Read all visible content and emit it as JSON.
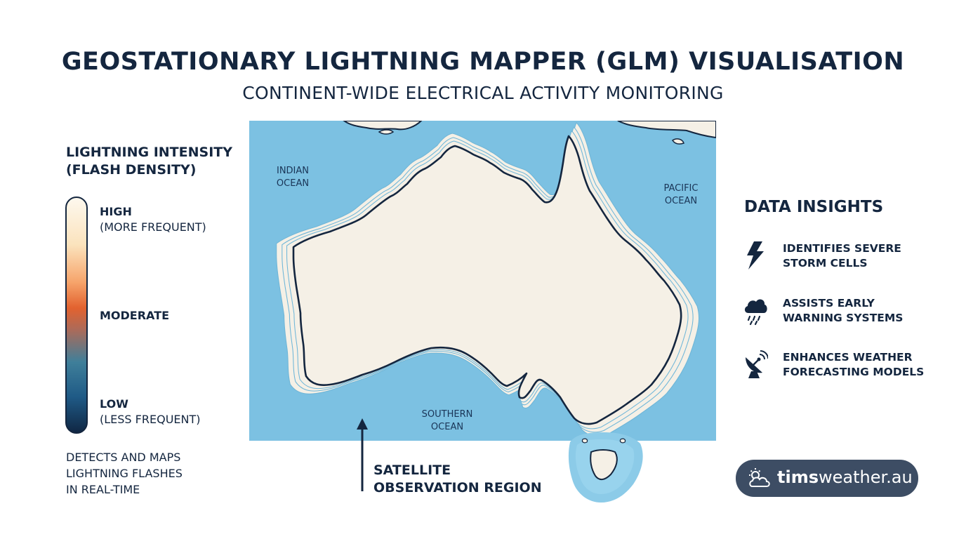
{
  "header": {
    "title": "GEOSTATIONARY LIGHTNING MAPPER (GLM) VISUALISATION",
    "subtitle": "CONTINENT-WIDE ELECTRICAL ACTIVITY MONITORING"
  },
  "legend": {
    "title_line1": "LIGHTNING INTENSITY",
    "title_line2": "(FLASH DENSITY)",
    "high": "HIGH",
    "high_note": "(MORE FREQUENT)",
    "moderate": "MODERATE",
    "low": "LOW",
    "low_note": "(LESS FREQUENT)",
    "colors": [
      "#fdf8ee",
      "#f6a46b",
      "#e2622f",
      "#3f7f9a",
      "#102744"
    ],
    "note_line1": "DETECTS AND MAPS",
    "note_line2": "LIGHTNING FLASHES",
    "note_line3": "IN REAL-TIME"
  },
  "map": {
    "ocean_color": "#7cc1e2",
    "land_color": "#f5f0e6",
    "oceans": {
      "indian_1": "INDIAN",
      "indian_2": "OCEAN",
      "pacific_1": "PACIFIC",
      "pacific_2": "OCEAN",
      "southern_1": "SOUTHERN",
      "southern_2": "OCEAN"
    },
    "region_label_line1": "SATELLITE",
    "region_label_line2": "OBSERVATION REGION"
  },
  "insights": {
    "title": "DATA INSIGHTS",
    "items": [
      {
        "icon": "lightning-bolt-icon",
        "line1": "IDENTIFIES SEVERE",
        "line2": "STORM CELLS"
      },
      {
        "icon": "storm-cloud-icon",
        "line1": "ASSISTS EARLY",
        "line2": "WARNING SYSTEMS"
      },
      {
        "icon": "satellite-dish-icon",
        "line1": "ENHANCES WEATHER",
        "line2": "FORECASTING MODELS"
      }
    ]
  },
  "brand": {
    "part1": "tims",
    "part2": "weather.au",
    "icon": "sun-cloud-icon"
  }
}
